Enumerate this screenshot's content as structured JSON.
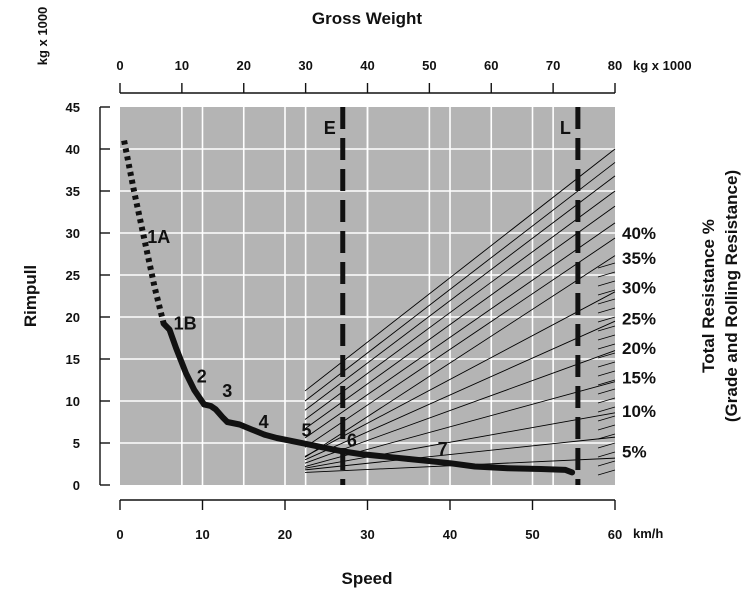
{
  "chart_data": {
    "type": "line",
    "title": "Gross Weight",
    "xlabel": "Speed",
    "x_unit": "km/h",
    "ylabel": "Rimpull",
    "y_unit": "kg x 1000",
    "top_axis_unit": "kg x 1000",
    "right_label_1": "Total Resistance %",
    "right_label_2": "(Grade and Rolling Resistance)",
    "xlim": [
      0,
      60
    ],
    "ylim": [
      0,
      45
    ],
    "top_xlim": [
      0,
      80
    ],
    "x_ticks": [
      0,
      10,
      20,
      30,
      40,
      50,
      60
    ],
    "y_ticks": [
      0,
      5,
      10,
      15,
      20,
      25,
      30,
      35,
      40,
      45
    ],
    "top_ticks": [
      0,
      10,
      20,
      30,
      40,
      50,
      60,
      70,
      80
    ],
    "grid": true,
    "series": [
      {
        "name": "1A",
        "style": "dotted",
        "x": [
          0.5,
          1.7,
          3.0,
          4.2,
          5.3
        ],
        "y": [
          41.0,
          35.0,
          29.0,
          23.5,
          19.2
        ]
      },
      {
        "name": "1B",
        "style": "solid",
        "x": [
          5.3,
          6.0,
          6.8,
          8.0,
          9.0,
          10.2
        ],
        "y": [
          19.2,
          18.5,
          16.3,
          13.3,
          11.3,
          9.6
        ]
      },
      {
        "name": "2",
        "style": "solid",
        "x": [
          10.2,
          11.0,
          11.6,
          12.5,
          13.0
        ],
        "y": [
          9.6,
          9.4,
          9.0,
          8.0,
          7.5
        ]
      },
      {
        "name": "3",
        "style": "solid",
        "x": [
          13.0,
          14.5,
          16.0,
          17.5
        ],
        "y": [
          7.5,
          7.2,
          6.6,
          6.0
        ]
      },
      {
        "name": "4",
        "style": "solid",
        "x": [
          17.5,
          19.0,
          21.0,
          22.5,
          24.0
        ],
        "y": [
          6.0,
          5.6,
          5.2,
          4.9,
          4.6
        ]
      },
      {
        "name": "5",
        "style": "solid",
        "x": [
          24.0,
          25.5,
          27.0
        ],
        "y": [
          4.6,
          4.3,
          4.0
        ]
      },
      {
        "name": "6",
        "style": "solid",
        "x": [
          27.0,
          29.0,
          31.0,
          33.0,
          35.0
        ],
        "y": [
          4.0,
          3.7,
          3.5,
          3.3,
          3.1
        ]
      },
      {
        "name": "7",
        "style": "solid",
        "x": [
          35.0,
          40.0,
          43.0,
          47.0,
          51.0,
          54.0,
          54.8
        ],
        "y": [
          3.1,
          2.6,
          2.2,
          2.0,
          1.9,
          1.8,
          1.5
        ]
      }
    ],
    "weight_markers": [
      {
        "label": "E",
        "weight": 36
      },
      {
        "label": "L",
        "weight": 74
      }
    ],
    "resistance_labels": [
      {
        "text": "40%",
        "y": 30.0
      },
      {
        "text": "35%",
        "y": 27.0
      },
      {
        "text": "30%",
        "y": 23.5
      },
      {
        "text": "25%",
        "y": 19.8
      },
      {
        "text": "20%",
        "y": 16.3
      },
      {
        "text": "15%",
        "y": 12.8
      },
      {
        "text": "10%",
        "y": 8.8
      },
      {
        "text": "5%",
        "y": 4.0
      }
    ],
    "resistance_lines": [
      {
        "y_start": 11.2,
        "y_end": 40.0
      },
      {
        "y_start": 10.0,
        "y_end": 38.4
      },
      {
        "y_start": 8.9,
        "y_end": 36.8
      },
      {
        "y_start": 7.8,
        "y_end": 35.0
      },
      {
        "y_start": 6.7,
        "y_end": 33.2
      },
      {
        "y_start": 5.6,
        "y_end": 31.2
      },
      {
        "y_start": 4.5,
        "y_end": 29.4
      },
      {
        "y_start": 3.3,
        "y_end": 27.3
      },
      {
        "y_start": 3.4,
        "y_end": 23.0
      },
      {
        "y_start": 3.0,
        "y_end": 19.5
      },
      {
        "y_start": 2.6,
        "y_end": 16.0
      },
      {
        "y_start": 2.2,
        "y_end": 12.3
      },
      {
        "y_start": 2.0,
        "y_end": 8.6
      },
      {
        "y_start": 1.8,
        "y_end": 5.7
      },
      {
        "y_start": 1.5,
        "y_end": 3.2
      }
    ],
    "segment_labels": [
      {
        "text": "1A",
        "x": 3.3,
        "y": 28.8
      },
      {
        "text": "1B",
        "x": 6.5,
        "y": 18.5
      },
      {
        "text": "2",
        "x": 9.3,
        "y": 12.2
      },
      {
        "text": "3",
        "x": 12.4,
        "y": 10.5
      },
      {
        "text": "4",
        "x": 16.8,
        "y": 6.8
      },
      {
        "text": "5",
        "x": 22.0,
        "y": 5.8
      },
      {
        "text": "6",
        "x": 27.5,
        "y": 4.6
      },
      {
        "text": "7",
        "x": 38.5,
        "y": 3.6
      }
    ]
  }
}
